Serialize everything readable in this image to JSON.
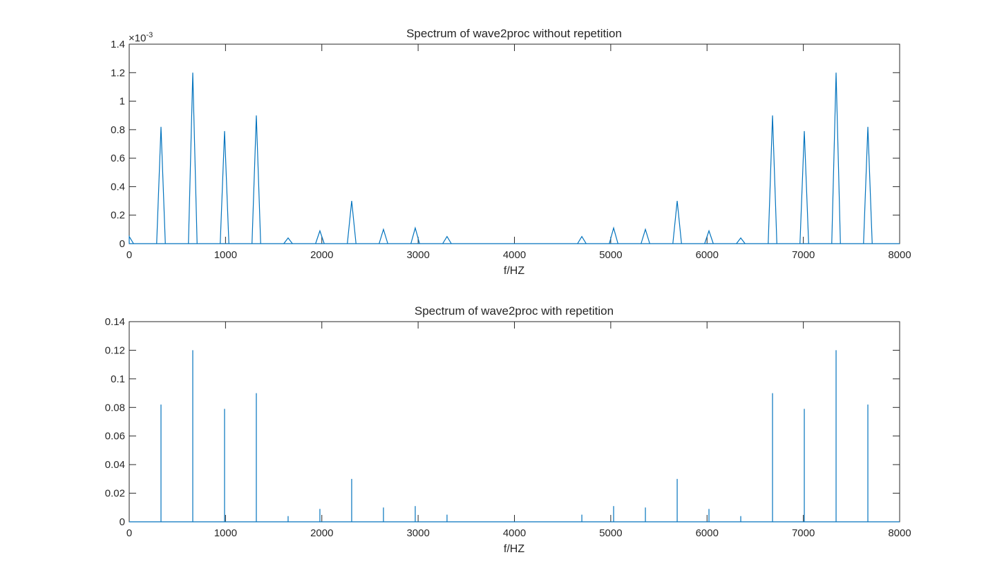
{
  "chart_data": [
    {
      "type": "line",
      "title": "Spectrum of wave2proc without repetition",
      "xlabel": "f/HZ",
      "ylabel": "",
      "xlim": [
        0,
        8000
      ],
      "ylim": [
        0,
        0.0014
      ],
      "y_exponent": "×10",
      "y_exponent_power": "-3",
      "x_ticks": [
        "0",
        "1000",
        "2000",
        "3000",
        "4000",
        "5000",
        "6000",
        "7000",
        "8000"
      ],
      "y_ticks": [
        "0",
        "0.2",
        "0.4",
        "0.6",
        "0.8",
        "1",
        "1.2",
        "1.4"
      ],
      "line_color": "#0072BD",
      "grid": false,
      "peaks": [
        {
          "x": 0,
          "y": 5e-05
        },
        {
          "x": 330,
          "y": 0.00082
        },
        {
          "x": 660,
          "y": 0.0012
        },
        {
          "x": 990,
          "y": 0.00079
        },
        {
          "x": 1320,
          "y": 0.0009
        },
        {
          "x": 1650,
          "y": 4e-05
        },
        {
          "x": 1980,
          "y": 9e-05
        },
        {
          "x": 2310,
          "y": 0.0003
        },
        {
          "x": 2640,
          "y": 0.0001
        },
        {
          "x": 2970,
          "y": 0.00011
        },
        {
          "x": 3300,
          "y": 5e-05
        },
        {
          "x": 4700,
          "y": 5e-05
        },
        {
          "x": 5030,
          "y": 0.00011
        },
        {
          "x": 5360,
          "y": 0.0001
        },
        {
          "x": 5690,
          "y": 0.0003
        },
        {
          "x": 6020,
          "y": 9e-05
        },
        {
          "x": 6350,
          "y": 4e-05
        },
        {
          "x": 6680,
          "y": 0.0009
        },
        {
          "x": 7010,
          "y": 0.00079
        },
        {
          "x": 7340,
          "y": 0.0012
        },
        {
          "x": 7670,
          "y": 0.00082
        }
      ]
    },
    {
      "type": "line",
      "title": "Spectrum of wave2proc with repetition",
      "xlabel": "f/HZ",
      "ylabel": "",
      "xlim": [
        0,
        8000
      ],
      "ylim": [
        0,
        0.14
      ],
      "x_ticks": [
        "0",
        "1000",
        "2000",
        "3000",
        "4000",
        "5000",
        "6000",
        "7000",
        "8000"
      ],
      "y_ticks": [
        "0",
        "0.02",
        "0.04",
        "0.06",
        "0.08",
        "0.1",
        "0.12",
        "0.14"
      ],
      "line_color": "#0072BD",
      "grid": false,
      "peaks": [
        {
          "x": 330,
          "y": 0.082
        },
        {
          "x": 660,
          "y": 0.12
        },
        {
          "x": 990,
          "y": 0.079
        },
        {
          "x": 1320,
          "y": 0.09
        },
        {
          "x": 1650,
          "y": 0.004
        },
        {
          "x": 1980,
          "y": 0.009
        },
        {
          "x": 2310,
          "y": 0.03
        },
        {
          "x": 2640,
          "y": 0.01
        },
        {
          "x": 2970,
          "y": 0.011
        },
        {
          "x": 3300,
          "y": 0.005
        },
        {
          "x": 4700,
          "y": 0.005
        },
        {
          "x": 5030,
          "y": 0.011
        },
        {
          "x": 5360,
          "y": 0.01
        },
        {
          "x": 5690,
          "y": 0.03
        },
        {
          "x": 6020,
          "y": 0.009
        },
        {
          "x": 6350,
          "y": 0.004
        },
        {
          "x": 6680,
          "y": 0.09
        },
        {
          "x": 7010,
          "y": 0.079
        },
        {
          "x": 7340,
          "y": 0.12
        },
        {
          "x": 7670,
          "y": 0.082
        }
      ]
    }
  ]
}
